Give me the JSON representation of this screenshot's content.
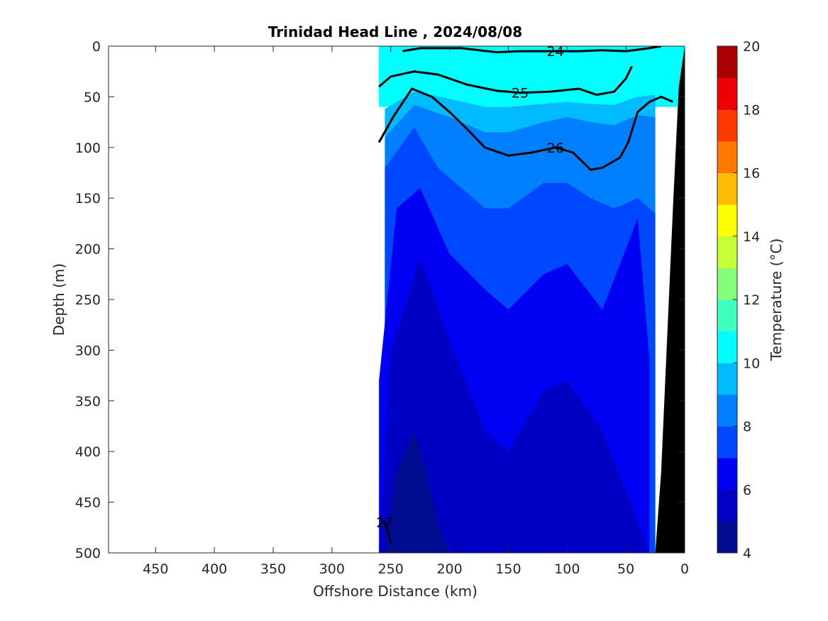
{
  "chart_data": {
    "type": "heatmap",
    "subtype": "filled-contour-section",
    "title": "Trinidad Head Line , 2024/08/08",
    "xlabel": "Offshore Distance (km)",
    "ylabel": "Depth (m)",
    "xlim": [
      490,
      0
    ],
    "ylim": [
      0,
      500
    ],
    "x_reversed": true,
    "y_reversed": true,
    "xticks": [
      450,
      400,
      350,
      300,
      250,
      200,
      150,
      100,
      50,
      0
    ],
    "yticks": [
      0,
      50,
      100,
      150,
      200,
      250,
      300,
      350,
      400,
      450,
      500
    ],
    "colorbar": {
      "label": "Temperature (°C)",
      "min": 4,
      "max": 20,
      "step": 1,
      "ticks": [
        4,
        6,
        8,
        10,
        12,
        14,
        16,
        18,
        20
      ],
      "colors": [
        "#000c8f",
        "#0000c4",
        "#0000f2",
        "#0048ff",
        "#0080ff",
        "#00bbff",
        "#00ffff",
        "#3fffbe",
        "#86ff78",
        "#c6ff38",
        "#ffff00",
        "#ffbc00",
        "#ff7800",
        "#ff3a00",
        "#ee0000",
        "#aa0000"
      ]
    },
    "data_extent_km": [
      260,
      0
    ],
    "temperature_bands": [
      {
        "t_min": 4,
        "t_max": 5,
        "x": [
          255,
          245,
          230,
          220,
          210,
          200
        ],
        "depth": [
          500,
          420,
          380,
          420,
          470,
          500
        ]
      },
      {
        "t_min": 5,
        "t_max": 6,
        "x": [
          260,
          250,
          225,
          200,
          170,
          150,
          120,
          100,
          70,
          50,
          30
        ],
        "depth": [
          500,
          300,
          210,
          290,
          380,
          400,
          340,
          330,
          380,
          440,
          500
        ]
      },
      {
        "t_min": 6,
        "t_max": 7,
        "x": [
          260,
          245,
          225,
          200,
          170,
          150,
          120,
          100,
          70,
          40,
          30
        ],
        "depth": [
          330,
          160,
          140,
          205,
          240,
          260,
          225,
          215,
          260,
          170,
          310
        ]
      },
      {
        "t_min": 7,
        "t_max": 8,
        "x": [
          255,
          230,
          210,
          170,
          150,
          120,
          100,
          80,
          60,
          40,
          25
        ],
        "depth": [
          120,
          80,
          120,
          160,
          160,
          135,
          135,
          150,
          160,
          150,
          165
        ]
      },
      {
        "t_min": 8,
        "t_max": 9,
        "x": [
          255,
          230,
          200,
          170,
          150,
          120,
          100,
          80,
          60,
          40,
          25
        ],
        "depth": [
          90,
          58,
          70,
          85,
          85,
          75,
          70,
          75,
          78,
          68,
          70
        ]
      },
      {
        "t_min": 9,
        "t_max": 10,
        "x": [
          255,
          230,
          200,
          170,
          150,
          120,
          100,
          80,
          60,
          40,
          25
        ],
        "depth": [
          62,
          45,
          52,
          60,
          60,
          57,
          55,
          57,
          58,
          50,
          48
        ]
      }
    ],
    "isopycnals": [
      {
        "label": "24",
        "bold": true,
        "x": [
          240,
          225,
          190,
          160,
          140,
          110,
          90,
          70,
          50,
          30,
          20
        ],
        "depth": [
          5,
          2,
          2,
          6,
          5,
          5,
          5,
          4,
          5,
          2,
          0
        ]
      },
      {
        "label": "25",
        "bold": true,
        "x": [
          260,
          250,
          230,
          210,
          185,
          160,
          140,
          115,
          90,
          75,
          60,
          50,
          45
        ],
        "depth": [
          40,
          30,
          25,
          28,
          38,
          44,
          46,
          45,
          42,
          48,
          45,
          32,
          20
        ]
      },
      {
        "label": "26",
        "bold": true,
        "x": [
          260,
          248,
          232,
          215,
          200,
          185,
          170,
          150,
          130,
          110,
          95,
          80,
          70,
          55,
          48,
          40,
          30,
          20,
          10
        ],
        "depth": [
          95,
          70,
          42,
          50,
          65,
          82,
          100,
          108,
          105,
          100,
          105,
          122,
          120,
          110,
          95,
          65,
          55,
          50,
          55
        ]
      },
      {
        "label": "27",
        "bold": true,
        "x": [
          260,
          255,
          250
        ],
        "depth": [
          465,
          470,
          490
        ]
      }
    ],
    "bathymetry": {
      "x": [
        25,
        20,
        10,
        5,
        0
      ],
      "depth": [
        500,
        420,
        160,
        40,
        0
      ]
    }
  }
}
